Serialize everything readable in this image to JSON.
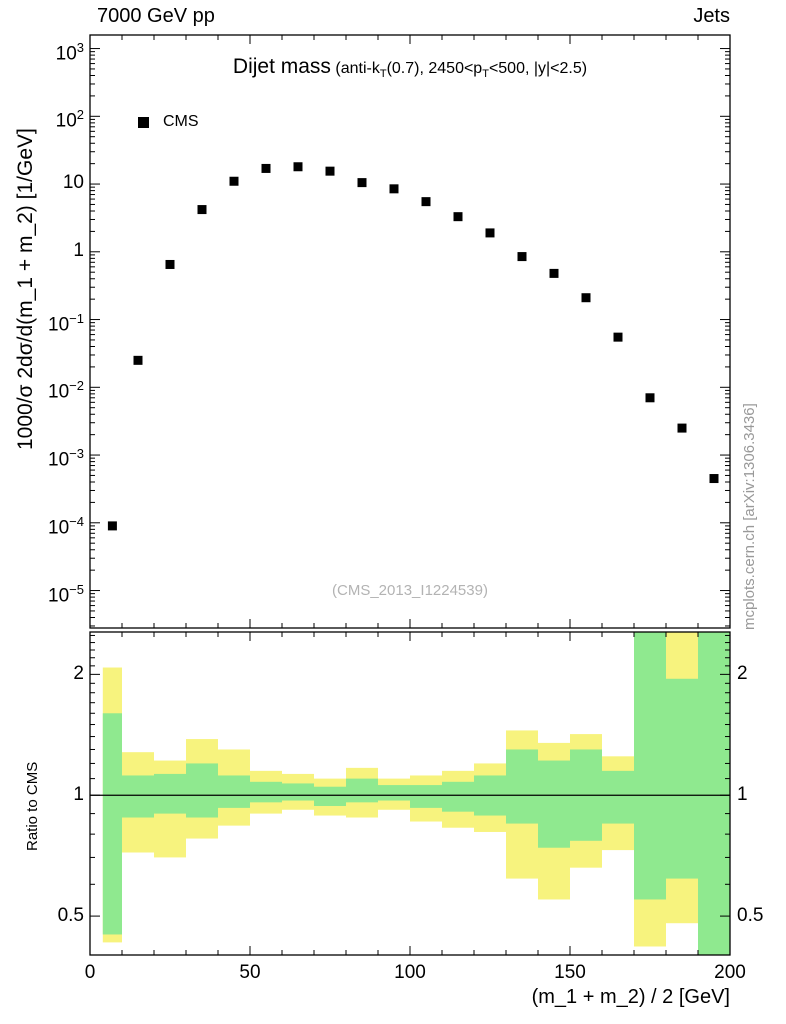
{
  "page": {
    "top_left_label": "7000 GeV pp",
    "top_right_label": "Jets",
    "side_label": "mcplots.cern.ch [arXiv:1306.3436]",
    "watermark": "(CMS_2013_I1224539)"
  },
  "chart_data": {
    "type": "scatter",
    "title": "Dijet mass",
    "subtitle_segments": [
      {
        "t": "(anti-k"
      },
      {
        "t": "T",
        "sub": true
      },
      {
        "t": "(0.7), 2450<p"
      },
      {
        "t": "T",
        "sub": true
      },
      {
        "t": "<500, |y|<2.5)"
      }
    ],
    "legend": [
      {
        "label": "CMS",
        "marker": "filled-square",
        "color": "#000000"
      }
    ],
    "main_panel": {
      "ylabel": "1000/σ 2dσ/d(m_1 + m_2) [1/GeV]",
      "yscale": "log",
      "ylim": [
        2.8e-06,
        1585
      ],
      "xlim": [
        0,
        200
      ],
      "ytick_exponents": [
        3,
        2,
        1,
        0,
        -1,
        -2,
        -3,
        -4,
        -5
      ],
      "series": [
        {
          "name": "CMS",
          "marker": "filled-square",
          "color": "#000000",
          "x": [
            7,
            15,
            25,
            35,
            45,
            55,
            65,
            75,
            85,
            95,
            105,
            115,
            125,
            135,
            145,
            155,
            165,
            175,
            185,
            195
          ],
          "y": [
            9e-05,
            0.025,
            0.65,
            4.2,
            11,
            17,
            18,
            15.5,
            10.5,
            8.5,
            5.5,
            3.3,
            1.9,
            0.85,
            0.48,
            0.21,
            0.055,
            0.007,
            0.0025,
            0.00045
          ]
        }
      ]
    },
    "ratio_panel": {
      "ylabel": "Ratio to CMS",
      "xlabel": "(m_1 + m_2) / 2 [GeV]",
      "yscale": "log2",
      "ylim": [
        0.4,
        2.55
      ],
      "yticks": [
        0.5,
        1,
        2
      ],
      "yticks_minor": [
        0.6,
        0.7,
        0.8,
        0.9,
        1.1,
        1.2,
        1.3,
        1.4,
        1.5,
        1.6,
        1.7,
        1.8,
        1.9,
        2.1,
        2.2,
        2.3,
        2.4,
        2.5
      ],
      "xticks": [
        0,
        50,
        100,
        150,
        200
      ],
      "reference_line": 1,
      "bin_edges": [
        4,
        10,
        20,
        30,
        40,
        50,
        60,
        70,
        80,
        90,
        100,
        110,
        120,
        130,
        140,
        150,
        160,
        170,
        180,
        190,
        200
      ],
      "bands": {
        "outer_color": "#f7f37e",
        "inner_color": "#8fe98f",
        "outer_lo": [
          0.43,
          0.72,
          0.7,
          0.78,
          0.84,
          0.9,
          0.92,
          0.89,
          0.88,
          0.92,
          0.86,
          0.83,
          0.81,
          0.62,
          0.55,
          0.66,
          0.73,
          0.42,
          0.48,
          0.4
        ],
        "outer_hi": [
          2.08,
          1.28,
          1.22,
          1.38,
          1.3,
          1.15,
          1.13,
          1.1,
          1.17,
          1.1,
          1.12,
          1.15,
          1.2,
          1.45,
          1.35,
          1.42,
          1.25,
          2.55,
          2.55,
          2.55
        ],
        "inner_lo": [
          0.45,
          0.88,
          0.9,
          0.88,
          0.93,
          0.96,
          0.97,
          0.94,
          0.96,
          0.97,
          0.93,
          0.91,
          0.89,
          0.85,
          0.74,
          0.77,
          0.85,
          0.55,
          0.62,
          0.4
        ],
        "inner_hi": [
          1.6,
          1.12,
          1.13,
          1.2,
          1.12,
          1.08,
          1.07,
          1.05,
          1.1,
          1.06,
          1.06,
          1.08,
          1.12,
          1.3,
          1.22,
          1.3,
          1.15,
          2.55,
          1.95,
          2.55
        ]
      }
    }
  }
}
